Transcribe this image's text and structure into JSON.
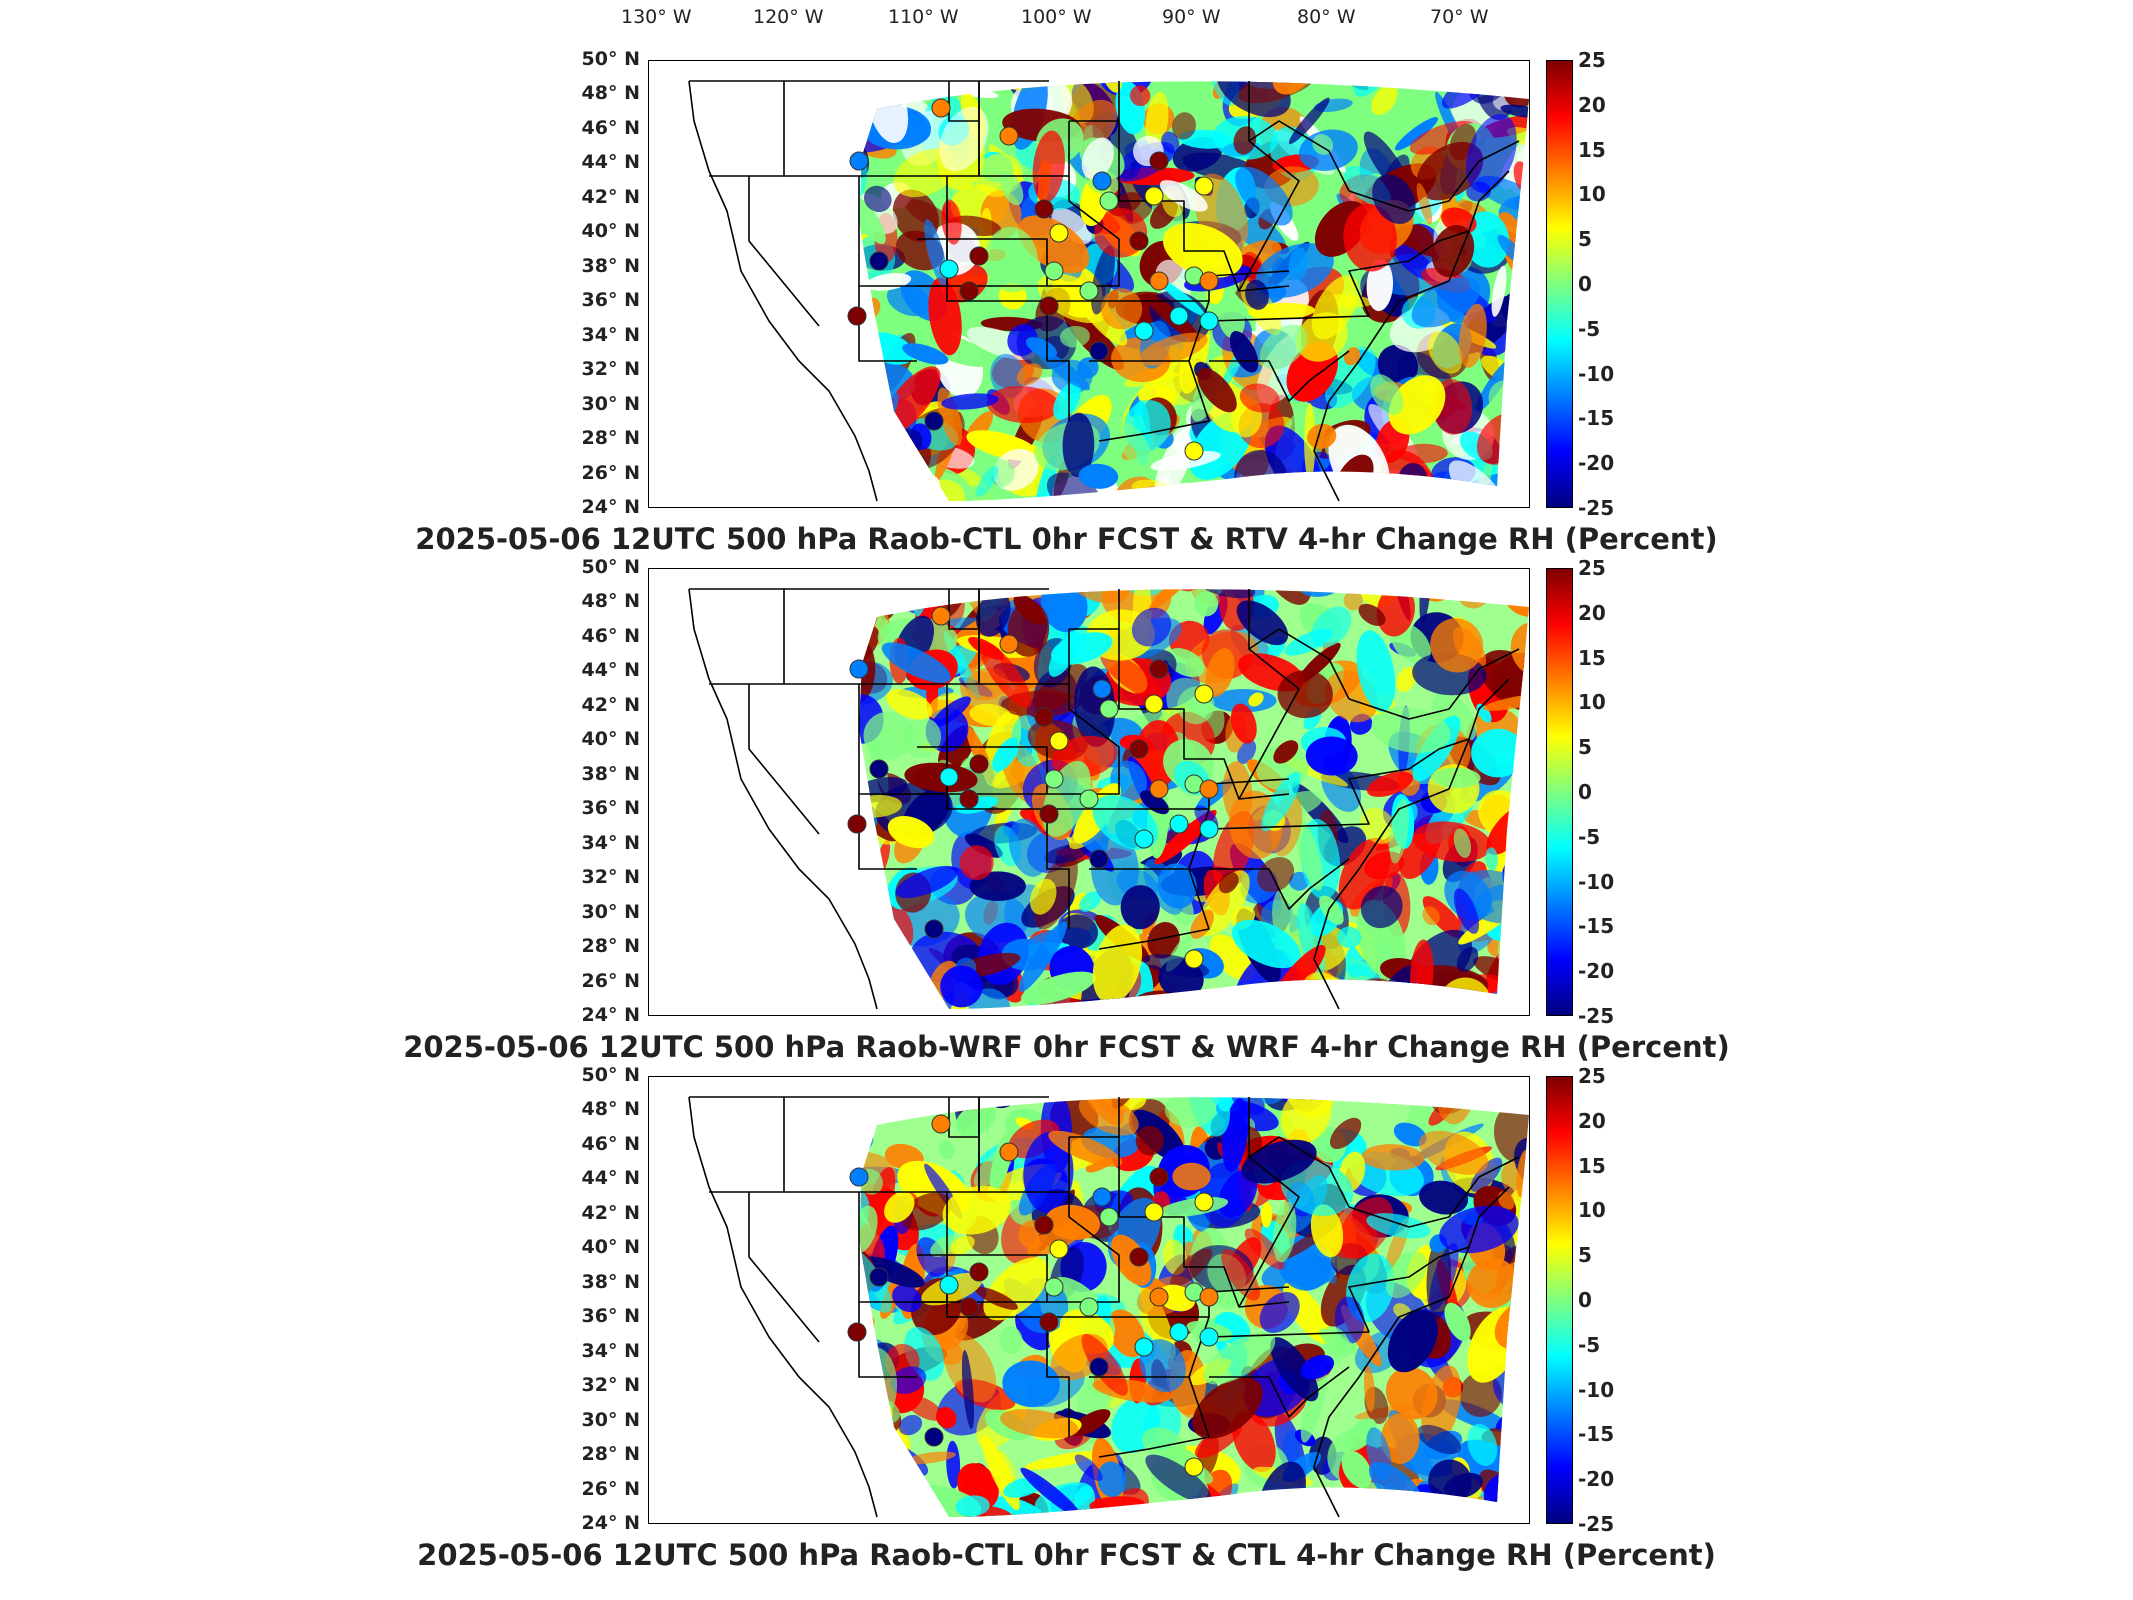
{
  "longitude_labels": [
    "130° W",
    "120° W",
    "110° W",
    "100° W",
    "90° W",
    "80° W",
    "70° W"
  ],
  "latitude_labels": [
    "50° N",
    "48° N",
    "46° N",
    "44° N",
    "42° N",
    "40° N",
    "38° N",
    "36° N",
    "34° N",
    "32° N",
    "30° N",
    "28° N",
    "26° N",
    "24° N"
  ],
  "colorbar": {
    "ticks": [
      "25",
      "20",
      "15",
      "10",
      "5",
      "0",
      "-5",
      "-10",
      "-15",
      "-20",
      "-25"
    ],
    "range": [
      -25,
      25
    ],
    "colors": [
      "#00007f",
      "#0000ff",
      "#007fff",
      "#00ffff",
      "#7fff7f",
      "#ffff00",
      "#ff7f00",
      "#ff0000",
      "#7f0000"
    ]
  },
  "panels": [
    {
      "title": "2025-05-06 12UTC 500 hPa Raob-CTL 0hr FCST & RTV 4-hr Change RH (Percent)"
    },
    {
      "title": "2025-05-06 12UTC 500 hPa Raob-WRF 0hr FCST & WRF 4-hr Change RH (Percent)"
    },
    {
      "title": "2025-05-06 12UTC 500 hPa Raob-CTL 0hr FCST & CTL 4-hr Change RH (Percent)"
    }
  ]
}
